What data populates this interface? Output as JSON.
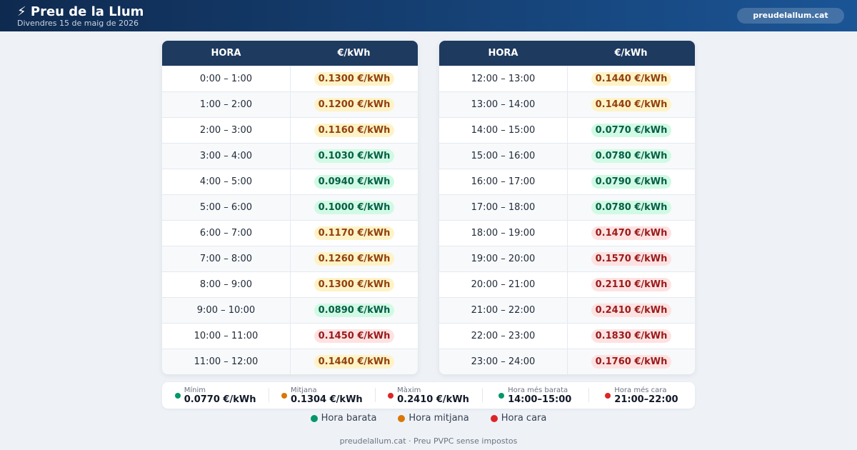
{
  "header": {
    "title": "⚡ Preu de la Llum",
    "subtitle": "Divendres 15 de maig de 2026",
    "badge": "preudelallum.cat"
  },
  "tables": [
    {
      "columns": [
        "HORA",
        "€/kWh"
      ],
      "rows": [
        {
          "hora": "0:00 – 1:00",
          "preu": "0.1300 €/kWh",
          "color": "#d97706"
        },
        {
          "hora": "1:00 – 2:00",
          "preu": "0.1200 €/kWh",
          "color": "#d97706"
        },
        {
          "hora": "2:00 – 3:00",
          "preu": "0.1160 €/kWh",
          "color": "#d97706"
        },
        {
          "hora": "3:00 – 4:00",
          "preu": "0.1030 €/kWh",
          "color": "#059669"
        },
        {
          "hora": "4:00 – 5:00",
          "preu": "0.0940 €/kWh",
          "color": "#059669"
        },
        {
          "hora": "5:00 – 6:00",
          "preu": "0.1000 €/kWh",
          "color": "#059669"
        },
        {
          "hora": "6:00 – 7:00",
          "preu": "0.1170 €/kWh",
          "color": "#d97706"
        },
        {
          "hora": "7:00 – 8:00",
          "preu": "0.1260 €/kWh",
          "color": "#d97706"
        },
        {
          "hora": "8:00 – 9:00",
          "preu": "0.1300 €/kWh",
          "color": "#d97706"
        },
        {
          "hora": "9:00 – 10:00",
          "preu": "0.0890 €/kWh",
          "color": "#059669"
        },
        {
          "hora": "10:00 – 11:00",
          "preu": "0.1450 €/kWh",
          "color": "#dc2626"
        },
        {
          "hora": "11:00 – 12:00",
          "preu": "0.1440 €/kWh",
          "color": "#d97706"
        }
      ]
    },
    {
      "columns": [
        "HORA",
        "€/kWh"
      ],
      "rows": [
        {
          "hora": "12:00 – 13:00",
          "preu": "0.1440 €/kWh",
          "color": "#d97706"
        },
        {
          "hora": "13:00 – 14:00",
          "preu": "0.1440 €/kWh",
          "color": "#d97706"
        },
        {
          "hora": "14:00 – 15:00",
          "preu": "0.0770 €/kWh",
          "color": "#059669"
        },
        {
          "hora": "15:00 – 16:00",
          "preu": "0.0780 €/kWh",
          "color": "#059669"
        },
        {
          "hora": "16:00 – 17:00",
          "preu": "0.0790 €/kWh",
          "color": "#059669"
        },
        {
          "hora": "17:00 – 18:00",
          "preu": "0.0780 €/kWh",
          "color": "#059669"
        },
        {
          "hora": "18:00 – 19:00",
          "preu": "0.1470 €/kWh",
          "color": "#dc2626"
        },
        {
          "hora": "19:00 – 20:00",
          "preu": "0.1570 €/kWh",
          "color": "#dc2626"
        },
        {
          "hora": "20:00 – 21:00",
          "preu": "0.2110 €/kWh",
          "color": "#dc2626"
        },
        {
          "hora": "21:00 – 22:00",
          "preu": "0.2410 €/kWh",
          "color": "#dc2626"
        },
        {
          "hora": "22:00 – 23:00",
          "preu": "0.1830 €/kWh",
          "color": "#dc2626"
        },
        {
          "hora": "23:00 – 24:00",
          "preu": "0.1760 €/kWh",
          "color": "#dc2626"
        }
      ]
    }
  ],
  "stats": [
    {
      "label": "Mínim",
      "value": "0.0770 €/kWh",
      "color": "#059669"
    },
    {
      "label": "Mitjana",
      "value": "0.1304 €/kWh",
      "color": "#d97706"
    },
    {
      "label": "Màxim",
      "value": "0.2410 €/kWh",
      "color": "#dc2626"
    },
    {
      "label": "Hora més barata",
      "value": "14:00–15:00",
      "color": "#059669"
    },
    {
      "label": "Hora més cara",
      "value": "21:00–22:00",
      "color": "#dc2626"
    }
  ],
  "legend": [
    {
      "label": "Hora barata",
      "color": "#059669"
    },
    {
      "label": "Hora mitjana",
      "color": "#d97706"
    },
    {
      "label": "Hora cara",
      "color": "#dc2626"
    }
  ],
  "footer": "preudelallum.cat · Preu PVPC sense impostos"
}
